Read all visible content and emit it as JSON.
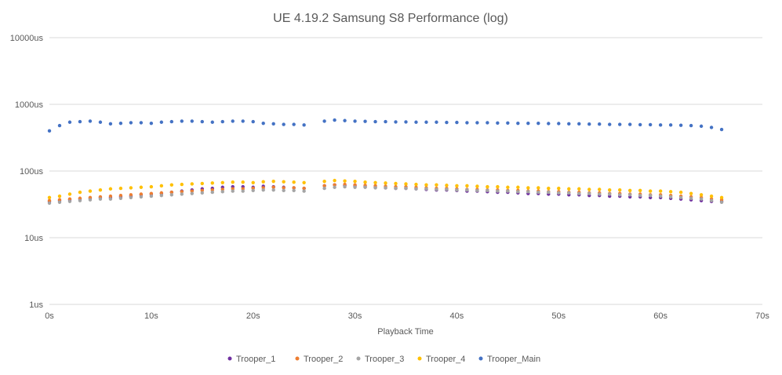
{
  "chart_data": {
    "type": "scatter",
    "title": "UE 4.19.2 Samsung S8 Performance (log)",
    "xlabel": "Playback Time",
    "ylabel": "",
    "x_unit": "s",
    "xlim": [
      0,
      70
    ],
    "ylim": [
      1,
      10000
    ],
    "y_scale": "log",
    "x_ticks": [
      "0s",
      "10s",
      "20s",
      "30s",
      "40s",
      "50s",
      "60s",
      "70s"
    ],
    "y_ticks": [
      "1us",
      "10us",
      "100us",
      "1000us",
      "10000us"
    ],
    "grid": "horizontal",
    "legend_position": "bottom",
    "series": [
      {
        "name": "Trooper_1",
        "color": "#7030A0",
        "x": [
          0,
          1,
          2,
          3,
          4,
          5,
          6,
          7,
          8,
          9,
          10,
          11,
          12,
          13,
          14,
          15,
          16,
          17,
          18,
          19,
          20,
          21,
          22,
          23,
          24,
          25,
          27,
          28,
          29,
          30,
          31,
          32,
          33,
          34,
          35,
          36,
          37,
          38,
          39,
          40,
          41,
          42,
          43,
          44,
          45,
          46,
          47,
          48,
          49,
          50,
          51,
          52,
          53,
          54,
          55,
          56,
          57,
          58,
          59,
          60,
          61,
          62,
          63,
          64,
          65,
          66
        ],
        "y": [
          35,
          36,
          37,
          38,
          39,
          40,
          40,
          41,
          42,
          44,
          45,
          46,
          48,
          50,
          52,
          54,
          55,
          57,
          58,
          58,
          57,
          59,
          58,
          57,
          56,
          55,
          60,
          62,
          61,
          60,
          58,
          57,
          56,
          55,
          55,
          54,
          53,
          52,
          52,
          51,
          50,
          50,
          49,
          48,
          48,
          47,
          46,
          46,
          45,
          45,
          44,
          44,
          43,
          43,
          42,
          42,
          41,
          41,
          40,
          40,
          39,
          38,
          37,
          36,
          35,
          35
        ]
      },
      {
        "name": "Trooper_2",
        "color": "#ED7D31",
        "x": [
          0,
          1,
          2,
          3,
          4,
          5,
          6,
          7,
          8,
          9,
          10,
          11,
          12,
          13,
          14,
          15,
          16,
          17,
          18,
          19,
          20,
          21,
          22,
          23,
          24,
          25,
          27,
          28,
          29,
          30,
          31,
          32,
          33,
          34,
          35,
          36,
          37,
          38,
          39,
          40,
          41,
          42,
          43,
          44,
          45,
          46,
          47,
          48,
          49,
          50,
          51,
          52,
          53,
          54,
          55,
          56,
          57,
          58,
          59,
          60,
          61,
          62,
          63,
          64,
          65,
          66
        ],
        "y": [
          36,
          37,
          38,
          39,
          40,
          41,
          42,
          43,
          44,
          45,
          46,
          47,
          48,
          49,
          50,
          51,
          52,
          53,
          54,
          54,
          55,
          56,
          57,
          56,
          56,
          55,
          60,
          62,
          63,
          62,
          61,
          60,
          59,
          58,
          58,
          57,
          56,
          55,
          55,
          54,
          53,
          53,
          52,
          52,
          51,
          51,
          50,
          50,
          49,
          49,
          48,
          48,
          47,
          47,
          46,
          46,
          45,
          45,
          44,
          44,
          43,
          42,
          41,
          40,
          38,
          37
        ]
      },
      {
        "name": "Trooper_3",
        "color": "#A5A5A5",
        "x": [
          0,
          1,
          2,
          3,
          4,
          5,
          6,
          7,
          8,
          9,
          10,
          11,
          12,
          13,
          14,
          15,
          16,
          17,
          18,
          19,
          20,
          21,
          22,
          23,
          24,
          25,
          27,
          28,
          29,
          30,
          31,
          32,
          33,
          34,
          35,
          36,
          37,
          38,
          39,
          40,
          41,
          42,
          43,
          44,
          45,
          46,
          47,
          48,
          49,
          50,
          51,
          52,
          53,
          54,
          55,
          56,
          57,
          58,
          59,
          60,
          61,
          62,
          63,
          64,
          65,
          66
        ],
        "y": [
          33,
          34,
          35,
          36,
          37,
          38,
          38,
          39,
          40,
          41,
          42,
          43,
          44,
          45,
          46,
          47,
          48,
          49,
          50,
          50,
          51,
          52,
          52,
          51,
          51,
          50,
          55,
          57,
          58,
          57,
          57,
          56,
          56,
          55,
          55,
          54,
          54,
          53,
          53,
          52,
          52,
          51,
          51,
          50,
          50,
          49,
          49,
          48,
          48,
          47,
          47,
          46,
          46,
          45,
          45,
          44,
          44,
          43,
          43,
          42,
          41,
          40,
          39,
          38,
          36,
          34
        ]
      },
      {
        "name": "Trooper_4",
        "color": "#FFC000",
        "x": [
          0,
          1,
          2,
          3,
          4,
          5,
          6,
          7,
          8,
          9,
          10,
          11,
          12,
          13,
          14,
          15,
          16,
          17,
          18,
          19,
          20,
          21,
          22,
          23,
          24,
          25,
          27,
          28,
          29,
          30,
          31,
          32,
          33,
          34,
          35,
          36,
          37,
          38,
          39,
          40,
          41,
          42,
          43,
          44,
          45,
          46,
          47,
          48,
          49,
          50,
          51,
          52,
          53,
          54,
          55,
          56,
          57,
          58,
          59,
          60,
          61,
          62,
          63,
          64,
          65,
          66
        ],
        "y": [
          40,
          42,
          45,
          48,
          50,
          52,
          54,
          55,
          56,
          57,
          58,
          60,
          62,
          63,
          64,
          65,
          66,
          67,
          68,
          68,
          67,
          69,
          70,
          69,
          68,
          67,
          70,
          72,
          71,
          70,
          68,
          67,
          66,
          65,
          64,
          63,
          62,
          62,
          61,
          60,
          60,
          59,
          58,
          58,
          57,
          57,
          56,
          56,
          55,
          55,
          54,
          54,
          53,
          53,
          52,
          52,
          51,
          51,
          50,
          50,
          49,
          48,
          46,
          44,
          42,
          40
        ]
      },
      {
        "name": "Trooper_Main",
        "color": "#4472C4",
        "x": [
          0,
          1,
          2,
          3,
          4,
          5,
          6,
          7,
          8,
          9,
          10,
          11,
          12,
          13,
          14,
          15,
          16,
          17,
          18,
          19,
          20,
          21,
          22,
          23,
          24,
          25,
          27,
          28,
          29,
          30,
          31,
          32,
          33,
          34,
          35,
          36,
          37,
          38,
          39,
          40,
          41,
          42,
          43,
          44,
          45,
          46,
          47,
          48,
          49,
          50,
          51,
          52,
          53,
          54,
          55,
          56,
          57,
          58,
          59,
          60,
          61,
          62,
          63,
          64,
          65,
          66
        ],
        "y": [
          400,
          480,
          540,
          550,
          560,
          540,
          510,
          520,
          530,
          530,
          520,
          540,
          550,
          560,
          560,
          550,
          540,
          550,
          560,
          560,
          550,
          520,
          510,
          500,
          500,
          490,
          560,
          580,
          570,
          560,
          555,
          550,
          550,
          545,
          545,
          540,
          540,
          540,
          535,
          535,
          530,
          530,
          530,
          525,
          525,
          520,
          520,
          520,
          515,
          515,
          510,
          510,
          505,
          505,
          500,
          500,
          500,
          495,
          495,
          490,
          490,
          485,
          480,
          470,
          450,
          420
        ]
      }
    ]
  }
}
